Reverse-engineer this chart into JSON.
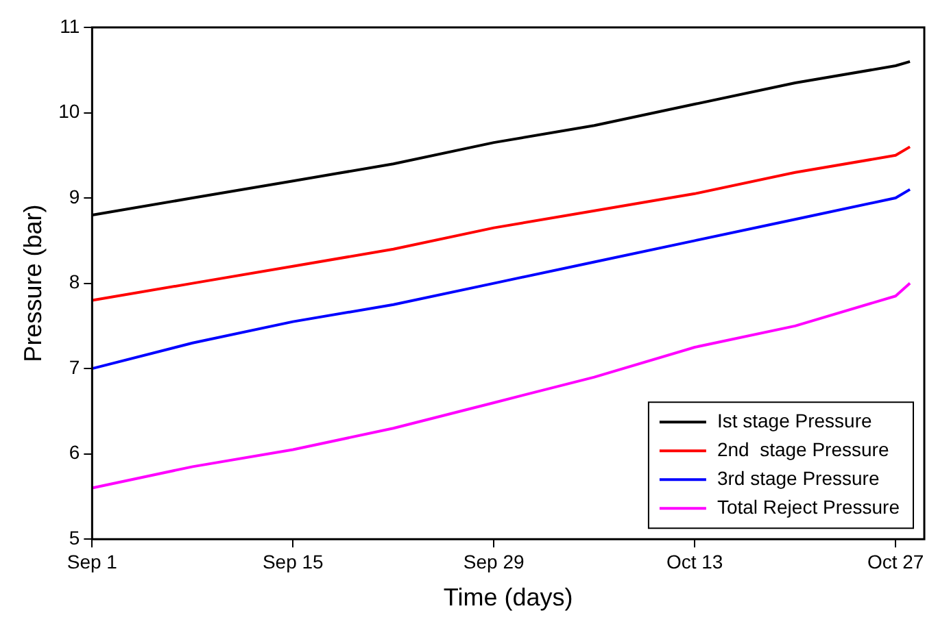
{
  "chart_data": {
    "type": "line",
    "xlabel": "Time (days)",
    "ylabel": "Pressure (bar)",
    "x": [
      "--09-01",
      "--09-08",
      "--09-15",
      "--09-22",
      "--09-29",
      "--10-06",
      "--10-13",
      "--10-20",
      "--10-27",
      "--10-28"
    ],
    "xlim": [
      "--09-01",
      "--10-29"
    ],
    "xticks": [
      {
        "value": "--09-01",
        "label": "Sep 1"
      },
      {
        "value": "--09-15",
        "label": "Sep 15"
      },
      {
        "value": "--09-29",
        "label": "Sep 29"
      },
      {
        "value": "--10-13",
        "label": "Oct 13"
      },
      {
        "value": "--10-27",
        "label": "Oct 27"
      }
    ],
    "ylim": [
      5,
      11
    ],
    "yticks": [
      5,
      6,
      7,
      8,
      9,
      10,
      11
    ],
    "series": [
      {
        "name": "Ist stage Pressure",
        "color": "#000000",
        "values": [
          8.8,
          9.0,
          9.2,
          9.4,
          9.65,
          9.85,
          10.1,
          10.35,
          10.55,
          10.6
        ]
      },
      {
        "name": "2nd  stage Pressure",
        "color": "#ff0000",
        "values": [
          7.8,
          8.0,
          8.2,
          8.4,
          8.65,
          8.85,
          9.05,
          9.3,
          9.5,
          9.6
        ]
      },
      {
        "name": "3rd stage Pressure",
        "color": "#0000ff",
        "values": [
          7.0,
          7.3,
          7.55,
          7.75,
          8.0,
          8.25,
          8.5,
          8.75,
          9.0,
          9.1
        ]
      },
      {
        "name": "Total Reject Pressure",
        "color": "#ff00ff",
        "values": [
          5.6,
          5.85,
          6.05,
          6.3,
          6.6,
          6.9,
          7.25,
          7.5,
          7.85,
          8.0
        ]
      }
    ],
    "grid": false,
    "legend": "bottom right",
    "marker": "none",
    "line_style": "solid"
  }
}
